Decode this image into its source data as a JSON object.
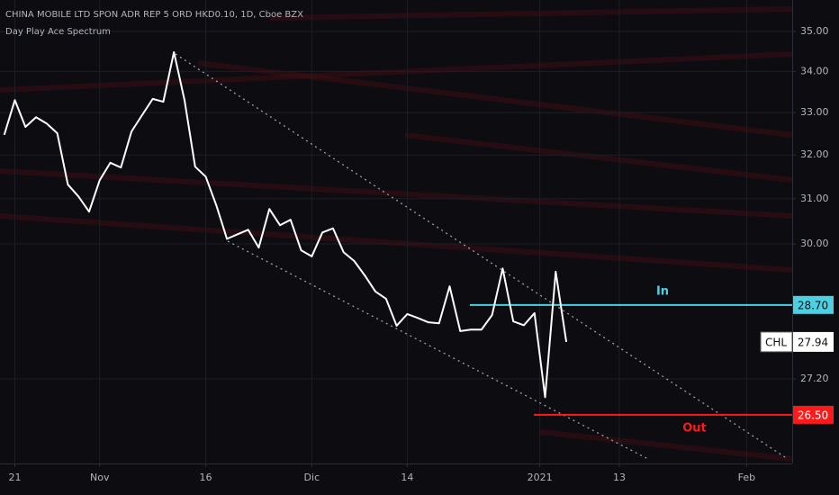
{
  "chart_data": {
    "type": "line",
    "title": "CHINA MOBILE LTD SPON ADR REP 5 ORD HKD0.10, 1D, Cboe BZX",
    "subtitle": "Day Play Ace Spectrum",
    "log_scale": true,
    "grid": true,
    "x": [
      -1,
      0,
      1,
      2,
      3,
      4,
      5,
      6,
      7,
      8,
      9,
      10,
      11,
      12,
      13,
      14,
      15,
      16,
      17,
      18,
      19,
      20,
      21,
      22,
      23,
      24,
      25,
      26,
      27,
      28,
      29,
      30,
      31,
      32,
      33,
      34,
      35,
      36,
      37,
      38,
      39,
      40,
      41,
      42,
      43,
      44,
      45,
      46,
      47,
      48,
      49,
      50,
      51,
      52
    ],
    "xlim": [
      -1.4,
      73.3
    ],
    "xticks": [
      {
        "value": 0,
        "label": "21"
      },
      {
        "value": 8,
        "label": "Nov"
      },
      {
        "value": 18,
        "label": "16"
      },
      {
        "value": 28,
        "label": "Dic"
      },
      {
        "value": 37,
        "label": "14"
      },
      {
        "value": 49.5,
        "label": "2021"
      },
      {
        "value": 57,
        "label": "13"
      },
      {
        "value": 69,
        "label": "Feb"
      }
    ],
    "ylim": [
      25.58,
      35.81
    ],
    "yticks": [
      {
        "value": 35,
        "label": "35.00"
      },
      {
        "value": 34,
        "label": "34.00"
      },
      {
        "value": 33,
        "label": "33.00"
      },
      {
        "value": 32,
        "label": "32.00"
      },
      {
        "value": 31,
        "label": "31.00"
      },
      {
        "value": 30,
        "label": "30.00"
      },
      {
        "value": 27.2,
        "label": "27.20"
      }
    ],
    "series": [
      {
        "name": "CHL",
        "color": "#ffffff",
        "values": [
          32.47,
          33.3,
          32.66,
          32.89,
          32.74,
          32.51,
          31.32,
          31.05,
          30.71,
          31.42,
          31.82,
          31.71,
          32.55,
          32.94,
          33.33,
          33.26,
          34.48,
          33.3,
          31.73,
          31.5,
          30.85,
          30.11,
          30.21,
          30.31,
          29.92,
          30.77,
          30.41,
          30.53,
          29.86,
          29.73,
          30.25,
          30.34,
          29.82,
          29.63,
          29.32,
          28.98,
          28.83,
          28.27,
          28.51,
          28.43,
          28.34,
          28.32,
          29.09,
          28.16,
          28.19,
          28.19,
          28.49,
          29.47,
          28.36,
          28.28,
          28.53,
          26.84,
          29.4,
          27.94
        ]
      }
    ],
    "hlines": [
      {
        "label": "In",
        "value": 28.7,
        "value_label": "28.70",
        "color": "#4dd0e1"
      },
      {
        "label": "Out",
        "value": 26.5,
        "value_label": "26.50",
        "color": "#ff1a1a"
      }
    ]
  }
}
